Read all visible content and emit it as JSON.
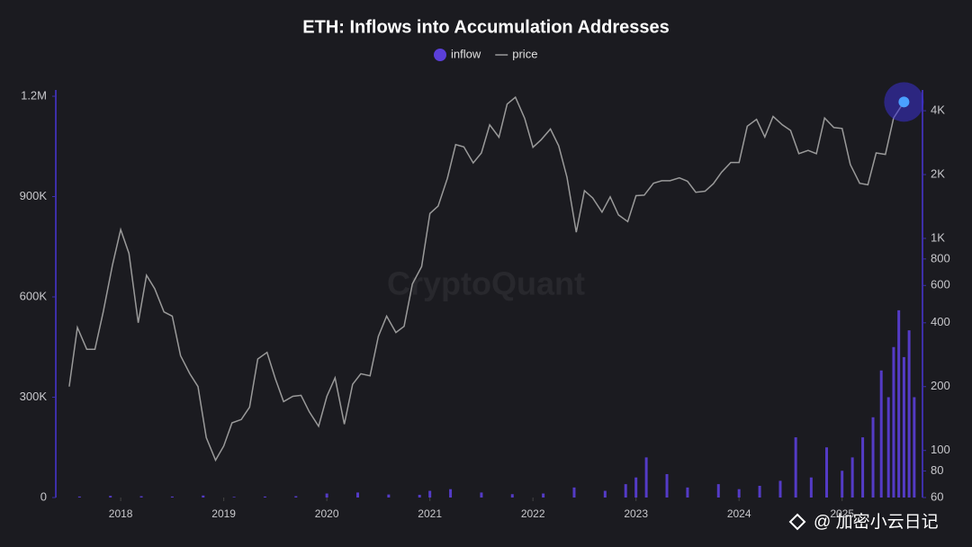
{
  "chart_data": {
    "type": "bar-line",
    "title": "ETH: Inflows into Accumulation Addresses",
    "watermark": "CryptoQuant",
    "overlay_text": "@ 加密小云日记",
    "xlim": [
      2017.37,
      2025.78
    ],
    "xticks": [
      2018,
      2019,
      2020,
      2021,
      2022,
      2023,
      2024,
      2025
    ],
    "ylim": [
      0,
      1200000
    ],
    "yticks": [
      0,
      {
        "value": 300000,
        "label": "300K"
      },
      {
        "value": 600000,
        "label": "600K"
      },
      {
        "value": 900000,
        "label": "900K"
      },
      {
        "value": 1200000,
        "label": "1.2M"
      }
    ],
    "y2lim": [
      60,
      4680
    ],
    "y2scale": "log",
    "y2ticks": [
      60,
      80,
      100,
      200,
      400,
      600,
      800,
      {
        "value": 1000,
        "label": "1K"
      },
      {
        "value": 2000,
        "label": "2K"
      },
      {
        "value": 4000,
        "label": "4K"
      }
    ],
    "grid": false,
    "series": [
      {
        "name": "inflow",
        "type": "bar",
        "axis": "y",
        "color": "#5b3fd8",
        "x": [
          2017.6,
          2017.9,
          2018.2,
          2018.5,
          2018.8,
          2019.1,
          2019.4,
          2019.7,
          2020.0,
          2020.3,
          2020.6,
          2020.9,
          2021.0,
          2021.2,
          2021.5,
          2021.8,
          2022.1,
          2022.4,
          2022.7,
          2022.9,
          2023.0,
          2023.1,
          2023.3,
          2023.5,
          2023.8,
          2024.0,
          2024.2,
          2024.4,
          2024.55,
          2024.7,
          2024.85,
          2025.0,
          2025.1,
          2025.2,
          2025.3,
          2025.38,
          2025.45,
          2025.5,
          2025.55,
          2025.6,
          2025.65,
          2025.7
        ],
        "values": [
          3000,
          5000,
          4000,
          3000,
          6000,
          2000,
          3000,
          4000,
          12000,
          15000,
          9000,
          8000,
          20000,
          25000,
          15000,
          10000,
          12000,
          30000,
          20000,
          40000,
          60000,
          120000,
          70000,
          30000,
          40000,
          25000,
          35000,
          50000,
          180000,
          60000,
          150000,
          80000,
          120000,
          180000,
          240000,
          380000,
          300000,
          450000,
          560000,
          420000,
          500000,
          300000
        ]
      },
      {
        "name": "price",
        "type": "line",
        "axis": "y2",
        "color": "#9a9a9a",
        "x": [
          2017.5,
          2017.58,
          2017.67,
          2017.75,
          2017.83,
          2017.92,
          2018.0,
          2018.08,
          2018.17,
          2018.25,
          2018.33,
          2018.42,
          2018.5,
          2018.58,
          2018.67,
          2018.75,
          2018.83,
          2018.92,
          2019.0,
          2019.08,
          2019.17,
          2019.25,
          2019.33,
          2019.42,
          2019.5,
          2019.58,
          2019.67,
          2019.75,
          2019.83,
          2019.92,
          2020.0,
          2020.08,
          2020.17,
          2020.25,
          2020.33,
          2020.42,
          2020.5,
          2020.58,
          2020.67,
          2020.75,
          2020.83,
          2020.92,
          2021.0,
          2021.08,
          2021.17,
          2021.25,
          2021.33,
          2021.42,
          2021.5,
          2021.58,
          2021.67,
          2021.75,
          2021.83,
          2021.92,
          2022.0,
          2022.08,
          2022.17,
          2022.25,
          2022.33,
          2022.42,
          2022.5,
          2022.58,
          2022.67,
          2022.75,
          2022.83,
          2022.92,
          2023.0,
          2023.08,
          2023.17,
          2023.25,
          2023.33,
          2023.42,
          2023.5,
          2023.58,
          2023.67,
          2023.75,
          2023.83,
          2023.92,
          2024.0,
          2024.08,
          2024.17,
          2024.25,
          2024.33,
          2024.42,
          2024.5,
          2024.58,
          2024.67,
          2024.75,
          2024.83,
          2024.92,
          2025.0,
          2025.08,
          2025.17,
          2025.25,
          2025.33,
          2025.42,
          2025.5,
          2025.6
        ],
        "values": [
          200,
          380,
          300,
          300,
          450,
          750,
          1100,
          850,
          400,
          670,
          580,
          450,
          430,
          280,
          230,
          200,
          115,
          90,
          105,
          135,
          140,
          160,
          270,
          290,
          218,
          170,
          180,
          182,
          152,
          130,
          180,
          220,
          133,
          205,
          230,
          225,
          345,
          430,
          360,
          385,
          610,
          737,
          1310,
          1420,
          1920,
          2770,
          2700,
          2270,
          2530,
          3430,
          3000,
          4300,
          4630,
          3680,
          2690,
          2920,
          3280,
          2730,
          1940,
          1070,
          1680,
          1550,
          1330,
          1570,
          1290,
          1200,
          1590,
          1600,
          1820,
          1870,
          1870,
          1930,
          1860,
          1650,
          1670,
          1810,
          2050,
          2280,
          2280,
          3380,
          3640,
          3010,
          3760,
          3430,
          3230,
          2510,
          2600,
          2510,
          3700,
          3330,
          3300,
          2230,
          1820,
          1790,
          2530,
          2490,
          3700,
          4400
        ]
      }
    ]
  }
}
